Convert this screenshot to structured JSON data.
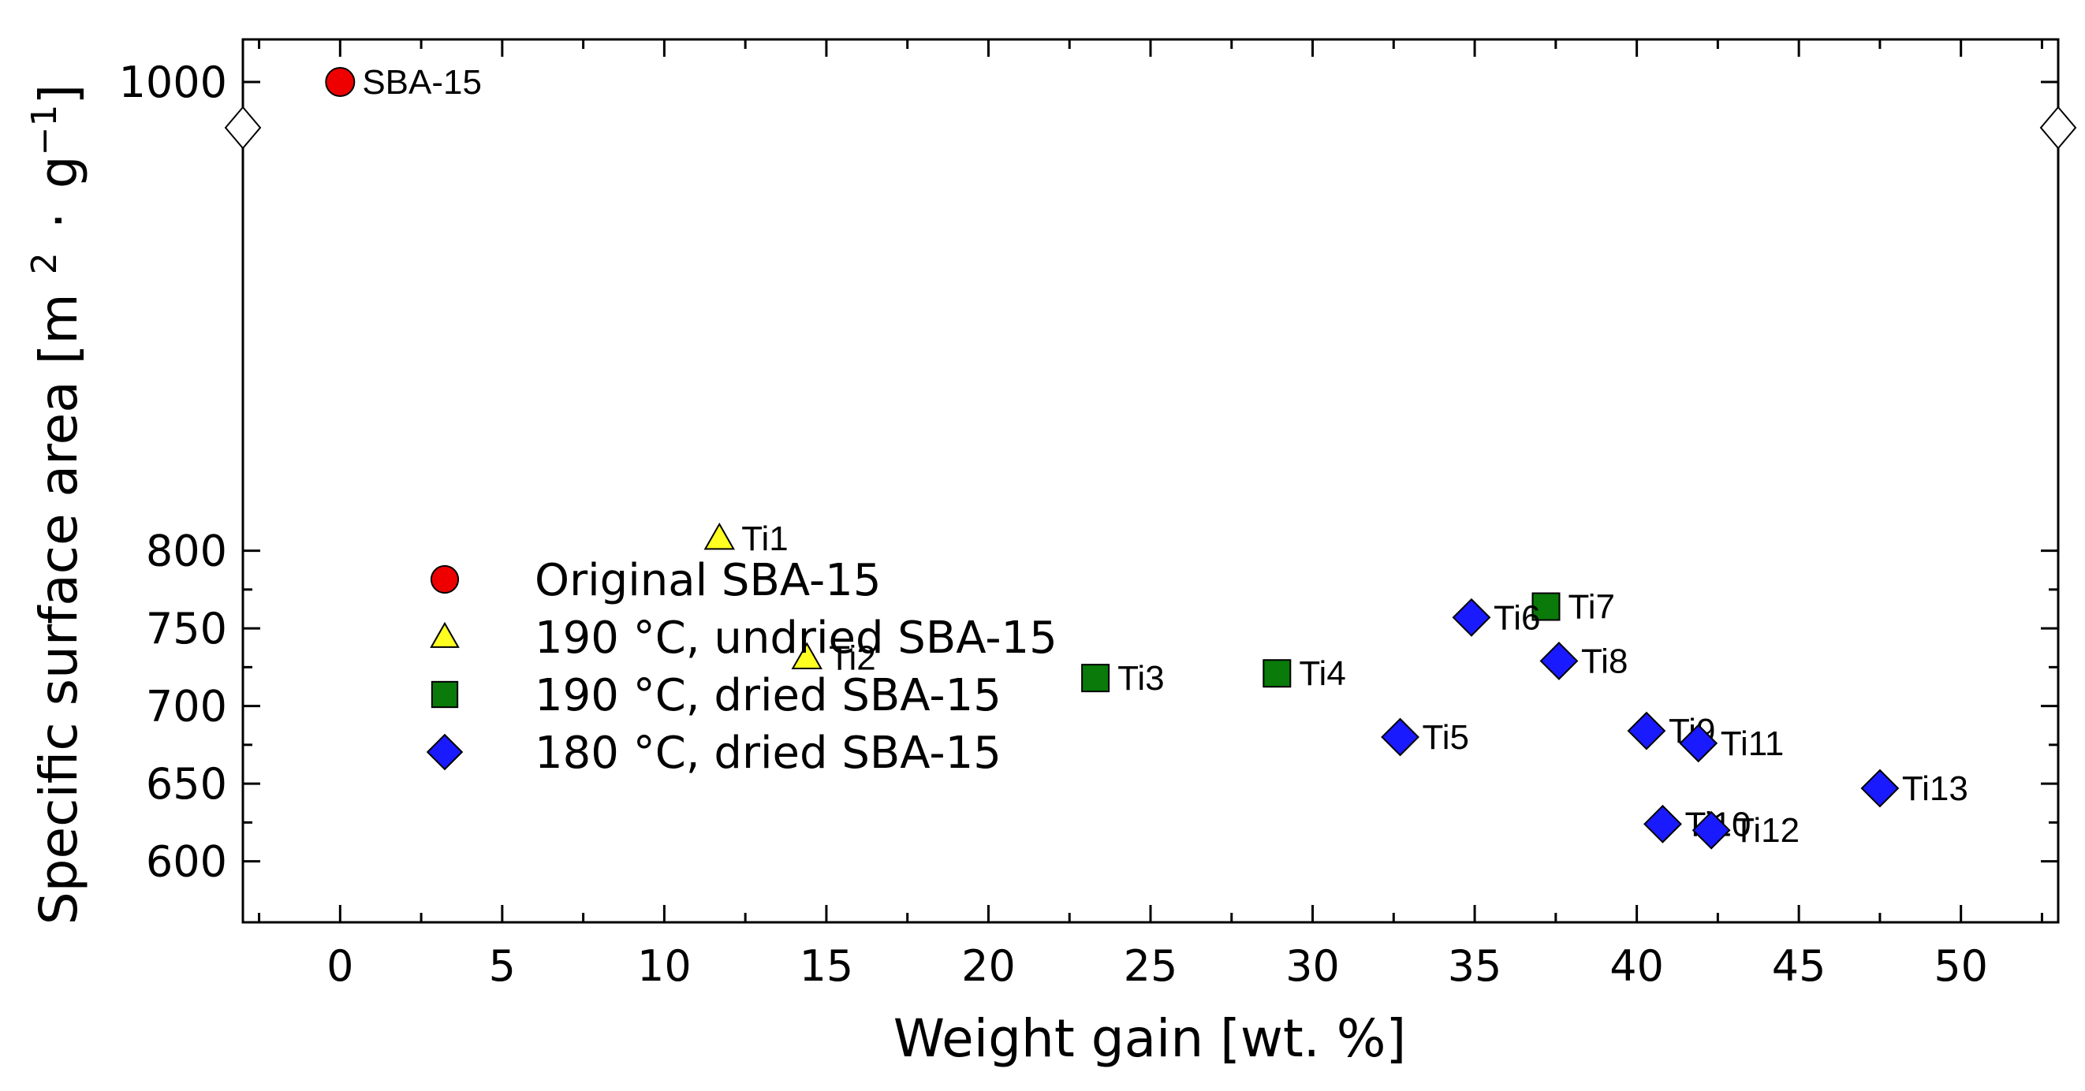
{
  "chart_data": {
    "type": "scatter",
    "xlabel": "Weight gain [wt. %]",
    "ylabel": {
      "main": "Specific surface area [m",
      "sq": "2",
      "dot": "·",
      "g": "g",
      "exp": "−1",
      "close": "]"
    },
    "xlim": [
      -3,
      53
    ],
    "ylim": [
      580,
      1027
    ],
    "xticks": [
      0,
      5,
      10,
      15,
      20,
      25,
      30,
      35,
      40,
      45,
      50
    ],
    "yticks": [
      600,
      650,
      700,
      750,
      800,
      1000
    ],
    "y_break": [
      850,
      990
    ],
    "series": [
      {
        "name": "Original SBA-15",
        "marker": "circle",
        "color": "#ee0000",
        "points": [
          {
            "x": 0,
            "y": 1000,
            "label": "SBA-15"
          }
        ]
      },
      {
        "name": "190 °C, undried SBA-15",
        "marker": "triangle",
        "color": "#ffff22",
        "points": [
          {
            "x": 11.7,
            "y": 808,
            "label": "Ti1"
          },
          {
            "x": 14.4,
            "y": 731,
            "label": "Ti2"
          }
        ]
      },
      {
        "name": "190 °C, dried SBA-15",
        "marker": "square",
        "color": "#0a7a0a",
        "points": [
          {
            "x": 23.3,
            "y": 718,
            "label": "Ti3"
          },
          {
            "x": 28.9,
            "y": 721,
            "label": "Ti4"
          },
          {
            "x": 37.2,
            "y": 764,
            "label": "Ti7"
          }
        ]
      },
      {
        "name": "180 °C, dried SBA-15",
        "marker": "diamond",
        "color": "#1a1aff",
        "points": [
          {
            "x": 32.7,
            "y": 680,
            "label": "Ti5"
          },
          {
            "x": 34.9,
            "y": 757,
            "label": "Ti6"
          },
          {
            "x": 37.6,
            "y": 729,
            "label": "Ti8"
          },
          {
            "x": 40.3,
            "y": 684,
            "label": "Ti9"
          },
          {
            "x": 40.8,
            "y": 624,
            "label": "Ti10"
          },
          {
            "x": 41.9,
            "y": 676,
            "label": "Ti11"
          },
          {
            "x": 42.3,
            "y": 620,
            "label": "Ti12"
          },
          {
            "x": 47.5,
            "y": 647,
            "label": "Ti13"
          }
        ]
      }
    ],
    "legend_position": "lower-left"
  }
}
